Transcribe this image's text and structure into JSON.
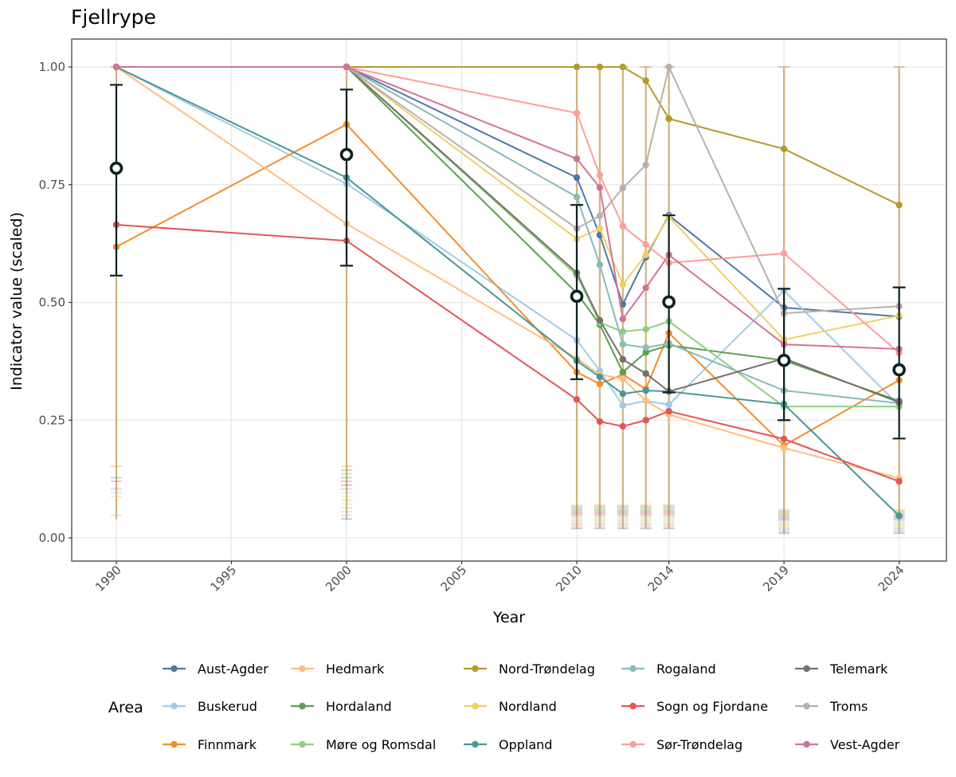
{
  "chart_data": {
    "type": "line",
    "title": "Fjellrype",
    "xlabel": "Year",
    "ylabel": "Indicator value (scaled)",
    "xlim": [
      1988,
      2026
    ],
    "ylim": [
      -0.05,
      1.06
    ],
    "x_ticks": [
      1990,
      1995,
      2000,
      2005,
      2010,
      2014,
      2019,
      2024
    ],
    "y_ticks": [
      0.0,
      0.25,
      0.5,
      0.75,
      1.0
    ],
    "y_tick_labels": [
      "0.00",
      "0.25",
      "0.50",
      "0.75",
      "1.00"
    ],
    "grid": true,
    "legend": {
      "title": "Area",
      "position": "bottom",
      "columns": 5
    },
    "x": [
      1990,
      2000,
      2010,
      2011,
      2012,
      2013,
      2014,
      2019,
      2024
    ],
    "series": [
      {
        "name": "Aust-Agder",
        "color": "#4e79a7",
        "values": [
          null,
          1.0,
          0.765,
          0.643,
          0.496,
          0.596,
          0.685,
          0.489,
          0.47
        ]
      },
      {
        "name": "Buskerud",
        "color": "#a0cbe8",
        "values": [
          1.0,
          0.752,
          0.42,
          0.355,
          0.281,
          0.291,
          0.283,
          0.525,
          0.281
        ]
      },
      {
        "name": "Finnmark",
        "color": "#f28e2b",
        "values": [
          0.618,
          0.878,
          0.352,
          0.327,
          0.347,
          0.316,
          0.435,
          0.196,
          0.335
        ]
      },
      {
        "name": "Hedmark",
        "color": "#ffbe7d",
        "values": [
          1.0,
          0.667,
          0.381,
          0.347,
          0.338,
          0.291,
          0.262,
          0.191,
          0.127
        ]
      },
      {
        "name": "Hordaland",
        "color": "#59a14f",
        "values": [
          null,
          1.0,
          0.52,
          0.453,
          0.352,
          0.394,
          0.409,
          0.377,
          0.291
        ]
      },
      {
        "name": "Møre og Romsdal",
        "color": "#8cd17d",
        "values": [
          null,
          1.0,
          0.558,
          0.457,
          0.438,
          0.443,
          0.46,
          0.279,
          0.279
        ]
      },
      {
        "name": "Nord-Trøndelag",
        "color": "#b6992d",
        "values": [
          null,
          1.0,
          1.0,
          1.0,
          1.0,
          0.971,
          0.89,
          0.826,
          0.707
        ]
      },
      {
        "name": "Nordland",
        "color": "#f1ce63",
        "values": [
          null,
          1.0,
          0.635,
          0.657,
          0.538,
          0.601,
          0.682,
          0.421,
          0.472
        ]
      },
      {
        "name": "Oppland",
        "color": "#499894",
        "values": [
          1.0,
          0.765,
          0.376,
          0.342,
          0.306,
          0.313,
          0.311,
          0.284,
          0.047
        ]
      },
      {
        "name": "Rogaland",
        "color": "#86bcb6",
        "values": [
          null,
          1.0,
          0.724,
          0.58,
          0.411,
          0.404,
          0.413,
          0.313,
          0.286
        ]
      },
      {
        "name": "Sogn og Fjordane",
        "color": "#e15759",
        "values": [
          0.665,
          0.631,
          0.294,
          0.247,
          0.237,
          0.25,
          0.269,
          0.21,
          0.12
        ]
      },
      {
        "name": "Sør-Trøndelag",
        "color": "#ff9d9a",
        "values": [
          null,
          1.0,
          0.902,
          0.77,
          0.662,
          0.623,
          0.584,
          0.604,
          0.393
        ]
      },
      {
        "name": "Telemark",
        "color": "#79706e",
        "values": [
          null,
          1.0,
          0.563,
          0.462,
          0.379,
          0.349,
          0.311,
          0.381,
          0.288
        ]
      },
      {
        "name": "Troms",
        "color": "#bab0ac",
        "values": [
          1.0,
          1.0,
          0.657,
          0.684,
          0.743,
          0.792,
          1.0,
          0.477,
          0.492
        ]
      },
      {
        "name": "Vest-Agder",
        "color": "#d37295",
        "values": [
          1.0,
          1.0,
          0.805,
          0.744,
          0.465,
          0.531,
          0.601,
          0.411,
          0.401
        ]
      }
    ],
    "mean_summary": {
      "name": "Mean",
      "color": "#0d2221",
      "x": [
        1990,
        2000,
        2010,
        2014,
        2019,
        2024
      ],
      "values": [
        0.785,
        0.814,
        0.513,
        0.501,
        0.377,
        0.357
      ],
      "lower": [
        0.557,
        0.578,
        0.337,
        0.309,
        0.25,
        0.211
      ],
      "upper": [
        0.962,
        0.952,
        0.707,
        0.685,
        0.529,
        0.532
      ]
    },
    "area_uncertainty": {
      "color": "#c8a46a",
      "x": [
        1990,
        2000,
        2010,
        2011,
        2012,
        2013,
        2014,
        2019,
        2024
      ],
      "lower_range": [
        0.04,
        0.04,
        0.02,
        0.02,
        0.02,
        0.02,
        0.02,
        0.01,
        0.01
      ],
      "upper": [
        1.0,
        1.0,
        1.0,
        1.0,
        1.0,
        1.0,
        1.0,
        1.0,
        1.0
      ]
    }
  }
}
